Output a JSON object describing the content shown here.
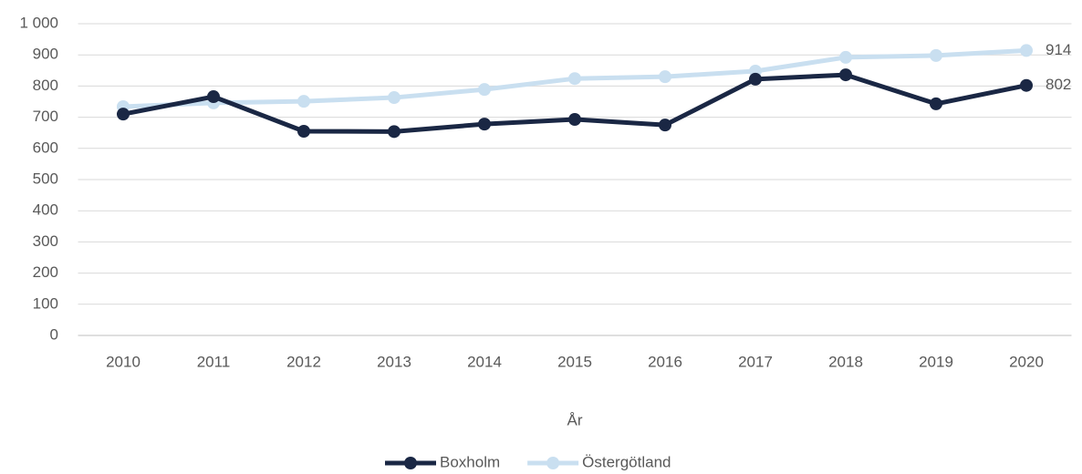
{
  "chart_data": {
    "type": "line",
    "x_label": "År",
    "categories": [
      "2010",
      "2011",
      "2012",
      "2013",
      "2014",
      "2015",
      "2016",
      "2017",
      "2018",
      "2019",
      "2020"
    ],
    "series": [
      {
        "name": "Boxholm",
        "color": "#1a2744",
        "values": [
          710,
          766,
          655,
          654,
          678,
          693,
          675,
          822,
          836,
          743,
          802
        ]
      },
      {
        "name": "Östergötland",
        "color": "#c9dff0",
        "values": [
          734,
          746,
          751,
          763,
          789,
          824,
          830,
          848,
          892,
          898,
          914
        ]
      }
    ],
    "ylim": [
      0,
      1000
    ],
    "yticks": [
      0,
      100,
      200,
      300,
      400,
      500,
      600,
      700,
      800,
      900,
      {
        "value": 1000,
        "label": "1 000"
      }
    ],
    "grid": true,
    "legend": "bottom",
    "data_labels": "last"
  }
}
